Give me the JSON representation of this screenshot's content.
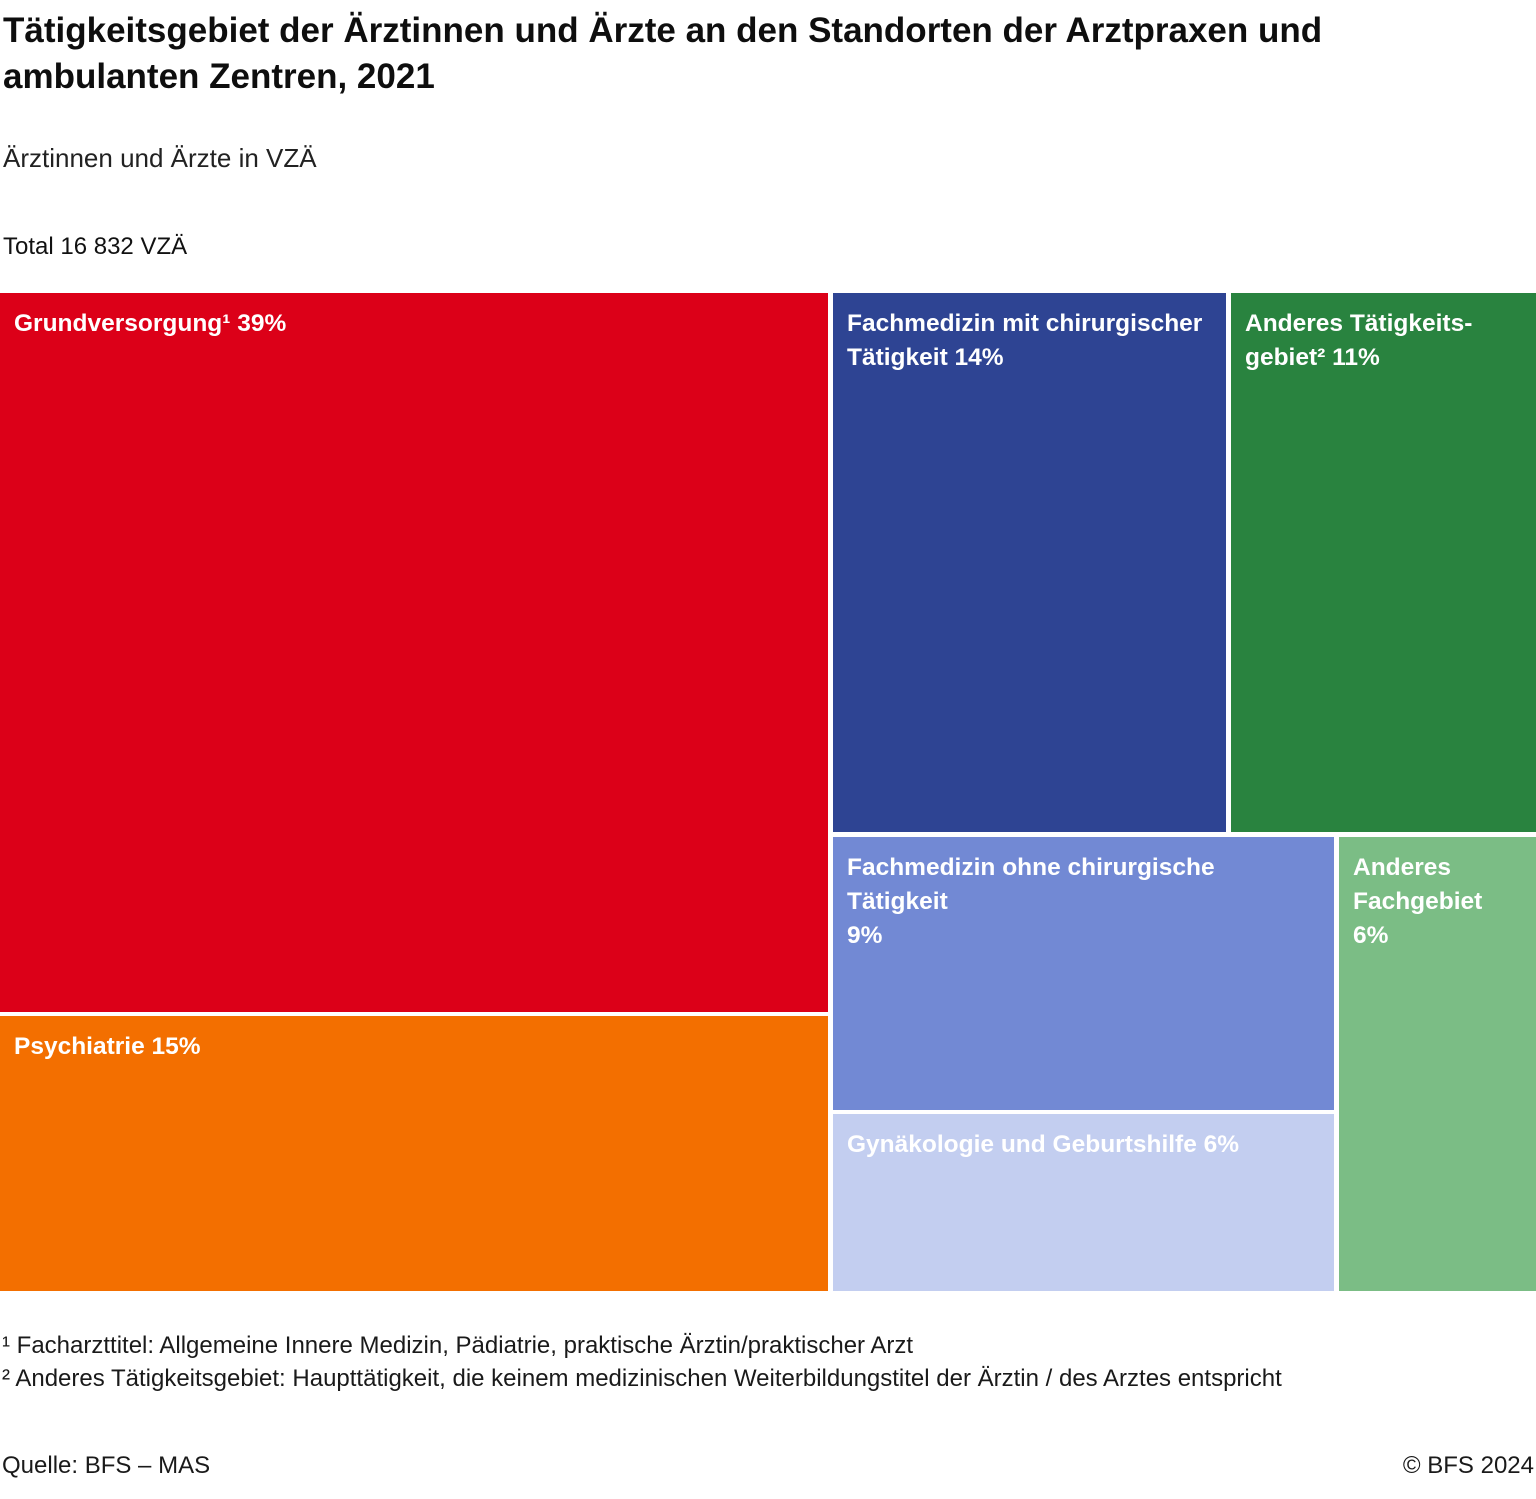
{
  "header": {
    "title": "Tätigkeitsgebiet der Ärztinnen und Ärzte an den Standorten der Arztpraxen und ambulanten Zentren, 2021",
    "subtitle": "Ärztinnen und Ärzte in VZÄ",
    "total_label": "Total 16 832 VZÄ"
  },
  "chart_data": {
    "type": "treemap",
    "title": "Tätigkeitsgebiet der Ärztinnen und Ärzte an den Standorten der Arztpraxen und ambulanten Zentren, 2021",
    "subtitle": "Ärztinnen und Ärzte in VZÄ",
    "unit": "VZÄ",
    "total_vza": "16 832",
    "segments": [
      {
        "label": "Grundversorgung¹",
        "percent": 39,
        "color": "#DC0018",
        "display_label": "Grundversorgung¹ 39%"
      },
      {
        "label": "Psychiatrie",
        "percent": 15,
        "color": "#F36F00",
        "display_label": "Psychiatrie 15%"
      },
      {
        "label": "Fachmedizin mit chirurgischer Tätigkeit",
        "percent": 14,
        "color": "#2E4493",
        "display_label": "Fachmedizin mit chirurgischer\nTätigkeit 14%"
      },
      {
        "label": "Anderes Tätigkeitsgebiet²",
        "percent": 11,
        "color": "#29833F",
        "display_label": "Anderes Tätigkeits-\ngebiet² 11%"
      },
      {
        "label": "Fachmedizin ohne chirurgische Tätigkeit",
        "percent": 9,
        "color": "#7289D4",
        "display_label": "Fachmedizin ohne chirurgische Tätigkeit\n9%"
      },
      {
        "label": "Gynäkologie und Geburtshilfe",
        "percent": 6,
        "color": "#C3CEF0",
        "display_label": "Gynäkologie und Geburtshilfe 6%"
      },
      {
        "label": "Anderes Fachgebiet",
        "percent": 6,
        "color": "#7BBD85",
        "display_label": "Anderes\nFachgebiet 6%"
      }
    ]
  },
  "footnotes": {
    "line1": "¹ Facharzttitel: Allgemeine Innere Medizin, Pädiatrie, praktische Ärztin/praktischer Arzt",
    "line2": "² Anderes Tätigkeitsgebiet: Haupttätigkeit, die keinem medizinischen Weiterbildungstitel der Ärztin / des Arztes entspricht"
  },
  "footer": {
    "source": "Quelle: BFS – MAS",
    "copyright": "© BFS 2024"
  }
}
